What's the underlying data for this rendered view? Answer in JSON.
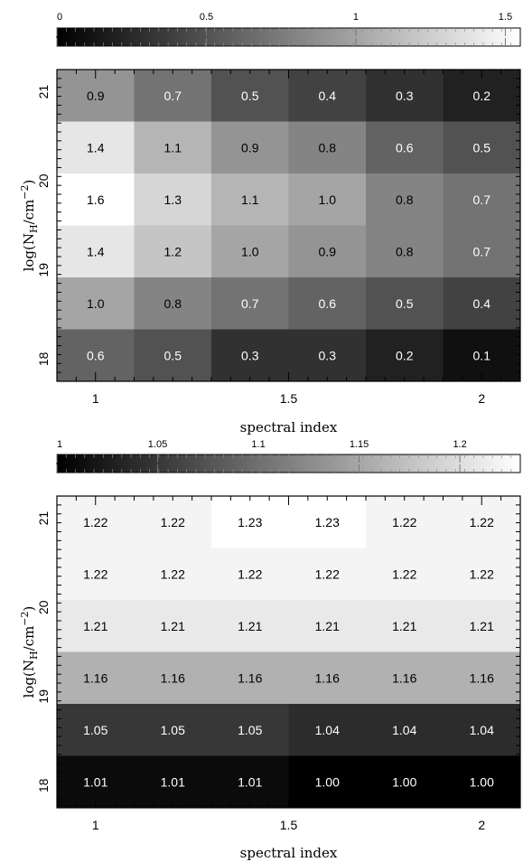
{
  "chart_data": [
    {
      "type": "heatmap",
      "title": "",
      "xlabel": "spectral index",
      "ylabel": "log(N_H/cm^-2)",
      "ylabel_main": "log(N",
      "ylabel_sub": "H",
      "ylabel_mid": "/cm",
      "ylabel_sup": "−2",
      "ylabel_end": ")",
      "x_ticks": [
        "1",
        "1.5",
        "2"
      ],
      "y_ticks": [
        "21",
        "20",
        "19",
        "18"
      ],
      "colorbar": {
        "min": 0,
        "max": 1.55,
        "ticks": [
          "0",
          "0.5",
          "1",
          "1.5"
        ],
        "tick_values": [
          0,
          0.5,
          1,
          1.5
        ]
      },
      "xlim": [
        0.9,
        2.1
      ],
      "ylim": [
        17.75,
        21.25
      ],
      "x": [
        1.0,
        1.2,
        1.4,
        1.6,
        1.8,
        2.0
      ],
      "y": [
        21,
        20.5,
        20,
        19.5,
        19,
        18.5,
        18
      ],
      "values": [
        [
          "0.9",
          "0.7",
          "0.5",
          "0.4",
          "0.3",
          "0.2"
        ],
        [
          "1.4",
          "1.1",
          "0.9",
          "0.8",
          "0.6",
          "0.5"
        ],
        [
          "1.6",
          "1.3",
          "1.1",
          "1.0",
          "0.8",
          "0.7"
        ],
        [
          "1.4",
          "1.2",
          "1.0",
          "0.9",
          "0.8",
          "0.7"
        ],
        [
          "1.0",
          "0.8",
          "0.7",
          "0.6",
          "0.5",
          "0.4"
        ],
        [
          "0.6",
          "0.5",
          "0.3",
          "0.3",
          "0.2",
          "0.1"
        ]
      ],
      "rows": [
        21.0,
        20.5,
        20.0,
        19.5,
        19.0,
        18.0
      ]
    },
    {
      "type": "heatmap",
      "title": "",
      "xlabel": "spectral index",
      "ylabel": "log(N_H/cm^-2)",
      "ylabel_main": "log(N",
      "ylabel_sub": "H",
      "ylabel_mid": "/cm",
      "ylabel_sup": "−2",
      "ylabel_end": ")",
      "x_ticks": [
        "1",
        "1.5",
        "2"
      ],
      "y_ticks": [
        "21",
        "20",
        "19",
        "18"
      ],
      "colorbar": {
        "min": 1.0,
        "max": 1.23,
        "ticks": [
          "1",
          "1.05",
          "1.1",
          "1.15",
          "1.2"
        ],
        "tick_values": [
          1.0,
          1.05,
          1.1,
          1.15,
          1.2
        ]
      },
      "xlim": [
        0.9,
        2.1
      ],
      "ylim": [
        17.75,
        21.25
      ],
      "values": [
        [
          "1.22",
          "1.22",
          "1.23",
          "1.23",
          "1.22",
          "1.22"
        ],
        [
          "1.22",
          "1.22",
          "1.22",
          "1.22",
          "1.22",
          "1.22"
        ],
        [
          "1.21",
          "1.21",
          "1.21",
          "1.21",
          "1.21",
          "1.21"
        ],
        [
          "1.16",
          "1.16",
          "1.16",
          "1.16",
          "1.16",
          "1.16"
        ],
        [
          "1.05",
          "1.05",
          "1.05",
          "1.04",
          "1.04",
          "1.04"
        ],
        [
          "1.01",
          "1.01",
          "1.01",
          "1.00",
          "1.00",
          "1.00"
        ]
      ]
    }
  ]
}
